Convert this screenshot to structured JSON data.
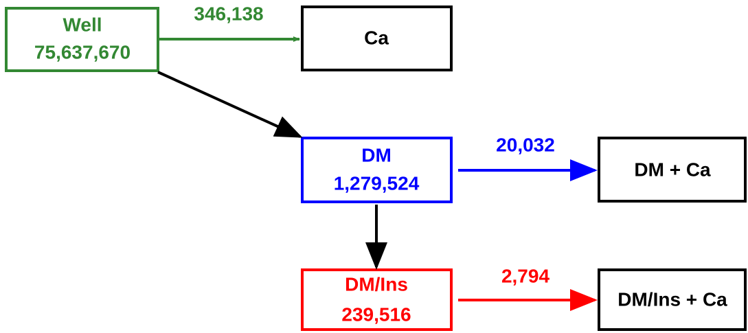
{
  "nodes": [
    {
      "label": "Well",
      "count": "75,637,670"
    },
    {
      "label": "Ca"
    },
    {
      "label": "DM",
      "count": "1,279,524"
    },
    {
      "label": "DM + Ca"
    },
    {
      "label": "DM/Ins",
      "count": "239,516"
    },
    {
      "label": "DM/Ins + Ca"
    }
  ],
  "edges": [
    {
      "label": "346,138"
    },
    {
      "label": "20,032"
    },
    {
      "label": "2,794"
    }
  ]
}
